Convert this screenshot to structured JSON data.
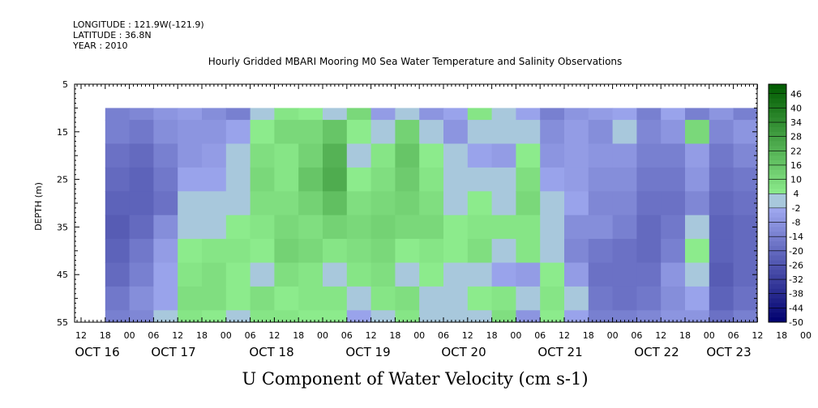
{
  "header": {
    "longitude": "LONGITUDE : 121.9W(-121.9)",
    "latitude": "LATITUDE : 36.8N",
    "year": "YEAR : 2010"
  },
  "chart_data": {
    "type": "heatmap",
    "title": "Hourly Gridded MBARI Mooring M0 Sea Water Temperature and Salinity Observations",
    "xlabel": "U Component of Water Velocity (cm s-1)",
    "ylabel": "DEPTH (m)",
    "y_ticks": [
      5,
      15,
      25,
      35,
      45,
      55
    ],
    "ylim": [
      55,
      5
    ],
    "x_hour_ticks": [
      "12",
      "18",
      "00",
      "06",
      "12",
      "18",
      "00",
      "06",
      "12",
      "18",
      "00",
      "06",
      "12",
      "18",
      "00",
      "06",
      "12",
      "18",
      "00",
      "06",
      "12",
      "18",
      "00",
      "06",
      "12",
      "18",
      "00",
      "06",
      "12",
      "18",
      "00",
      "06"
    ],
    "x_day_labels": [
      "OCT 16",
      "OCT 17",
      "OCT 18",
      "OCT 19",
      "OCT 20",
      "OCT 21",
      "OCT 22",
      "OCT 23"
    ],
    "data_depth_range_m": [
      10,
      55
    ],
    "time_range": [
      "OCT 16 18:00",
      "OCT 23 12:00"
    ],
    "colorbar_labels": [
      "46",
      "40",
      "34",
      "28",
      "22",
      "16",
      "10",
      "4",
      "-2",
      "-8",
      "-14",
      "-20",
      "-26",
      "-32",
      "-38",
      "-44",
      "-50"
    ],
    "colorbar_range": [
      -50,
      50
    ],
    "depth_rows_m": [
      10,
      15,
      20,
      25,
      30,
      35,
      40,
      45,
      50,
      55
    ],
    "time_cols": [
      "OCT 16 18:00",
      "OCT 17 00:00",
      "OCT 17 06:00",
      "OCT 17 12:00",
      "OCT 17 18:00",
      "OCT 18 00:00",
      "OCT 18 06:00",
      "OCT 18 12:00",
      "OCT 18 18:00",
      "OCT 19 00:00",
      "OCT 19 06:00",
      "OCT 19 12:00",
      "OCT 19 18:00",
      "OCT 20 00:00",
      "OCT 20 06:00",
      "OCT 20 12:00",
      "OCT 20 18:00",
      "OCT 21 00:00",
      "OCT 21 06:00",
      "OCT 21 12:00",
      "OCT 21 18:00",
      "OCT 22 00:00",
      "OCT 22 06:00",
      "OCT 22 12:00",
      "OCT 22 18:00",
      "OCT 23 00:00",
      "OCT 23 06:00",
      "OCT 23 12:00"
    ],
    "u_velocity_grid": [
      [
        -14,
        -12,
        -8,
        -6,
        -10,
        -14,
        -2,
        6,
        4,
        2,
        10,
        -6,
        -2,
        -8,
        -4,
        6,
        2,
        -4,
        -14,
        -8,
        -6,
        -4,
        -14,
        -4,
        -14,
        -8,
        -14,
        -8
      ],
      [
        -14,
        -16,
        -10,
        -8,
        -8,
        -4,
        4,
        10,
        10,
        16,
        4,
        2,
        12,
        0,
        -8,
        2,
        -2,
        0,
        -10,
        -6,
        -10,
        -2,
        -12,
        -8,
        10,
        -12,
        -8,
        -12
      ],
      [
        -18,
        -20,
        -14,
        -8,
        -6,
        -2,
        8,
        6,
        12,
        22,
        2,
        6,
        16,
        4,
        -2,
        -4,
        -6,
        4,
        -8,
        -6,
        -8,
        -8,
        -14,
        -14,
        -6,
        -16,
        -12,
        -14
      ],
      [
        -20,
        -22,
        -16,
        -4,
        -4,
        -2,
        10,
        6,
        16,
        24,
        4,
        8,
        14,
        6,
        0,
        2,
        -2,
        8,
        -4,
        -6,
        -10,
        -10,
        -16,
        -16,
        -8,
        -18,
        -16,
        -16
      ],
      [
        -22,
        -22,
        -18,
        -2,
        0,
        2,
        8,
        8,
        12,
        18,
        8,
        10,
        12,
        8,
        2,
        4,
        2,
        10,
        2,
        -4,
        -12,
        -12,
        -18,
        -18,
        -12,
        -20,
        -18,
        -18
      ],
      [
        -24,
        -20,
        -10,
        2,
        0,
        4,
        6,
        10,
        8,
        12,
        10,
        12,
        10,
        10,
        4,
        6,
        6,
        6,
        -2,
        -10,
        -10,
        -14,
        -20,
        -16,
        2,
        -22,
        -20,
        -20
      ],
      [
        -22,
        -16,
        -6,
        4,
        6,
        6,
        4,
        12,
        10,
        6,
        8,
        10,
        4,
        6,
        4,
        8,
        2,
        6,
        2,
        -12,
        -16,
        -18,
        -20,
        -14,
        4,
        -22,
        -20,
        -20
      ],
      [
        -20,
        -14,
        -4,
        6,
        8,
        4,
        2,
        8,
        6,
        2,
        6,
        8,
        2,
        4,
        2,
        2,
        -4,
        -6,
        4,
        -6,
        -18,
        -18,
        -18,
        -8,
        2,
        -24,
        -20,
        -20
      ],
      [
        -16,
        -10,
        -4,
        8,
        8,
        4,
        8,
        4,
        6,
        6,
        -2,
        6,
        8,
        2,
        0,
        4,
        6,
        -2,
        6,
        -2,
        -16,
        -18,
        -16,
        -10,
        -4,
        -22,
        -18,
        -18
      ],
      [
        -14,
        -12,
        -2,
        6,
        4,
        2,
        6,
        6,
        4,
        4,
        -4,
        2,
        6,
        0,
        -2,
        2,
        8,
        -8,
        4,
        -4,
        -14,
        -14,
        -12,
        -8,
        -8,
        -18,
        -14,
        -14
      ]
    ]
  },
  "colors": {
    "background": "#ffffff",
    "axis": "#000000",
    "frame": "#000000"
  }
}
